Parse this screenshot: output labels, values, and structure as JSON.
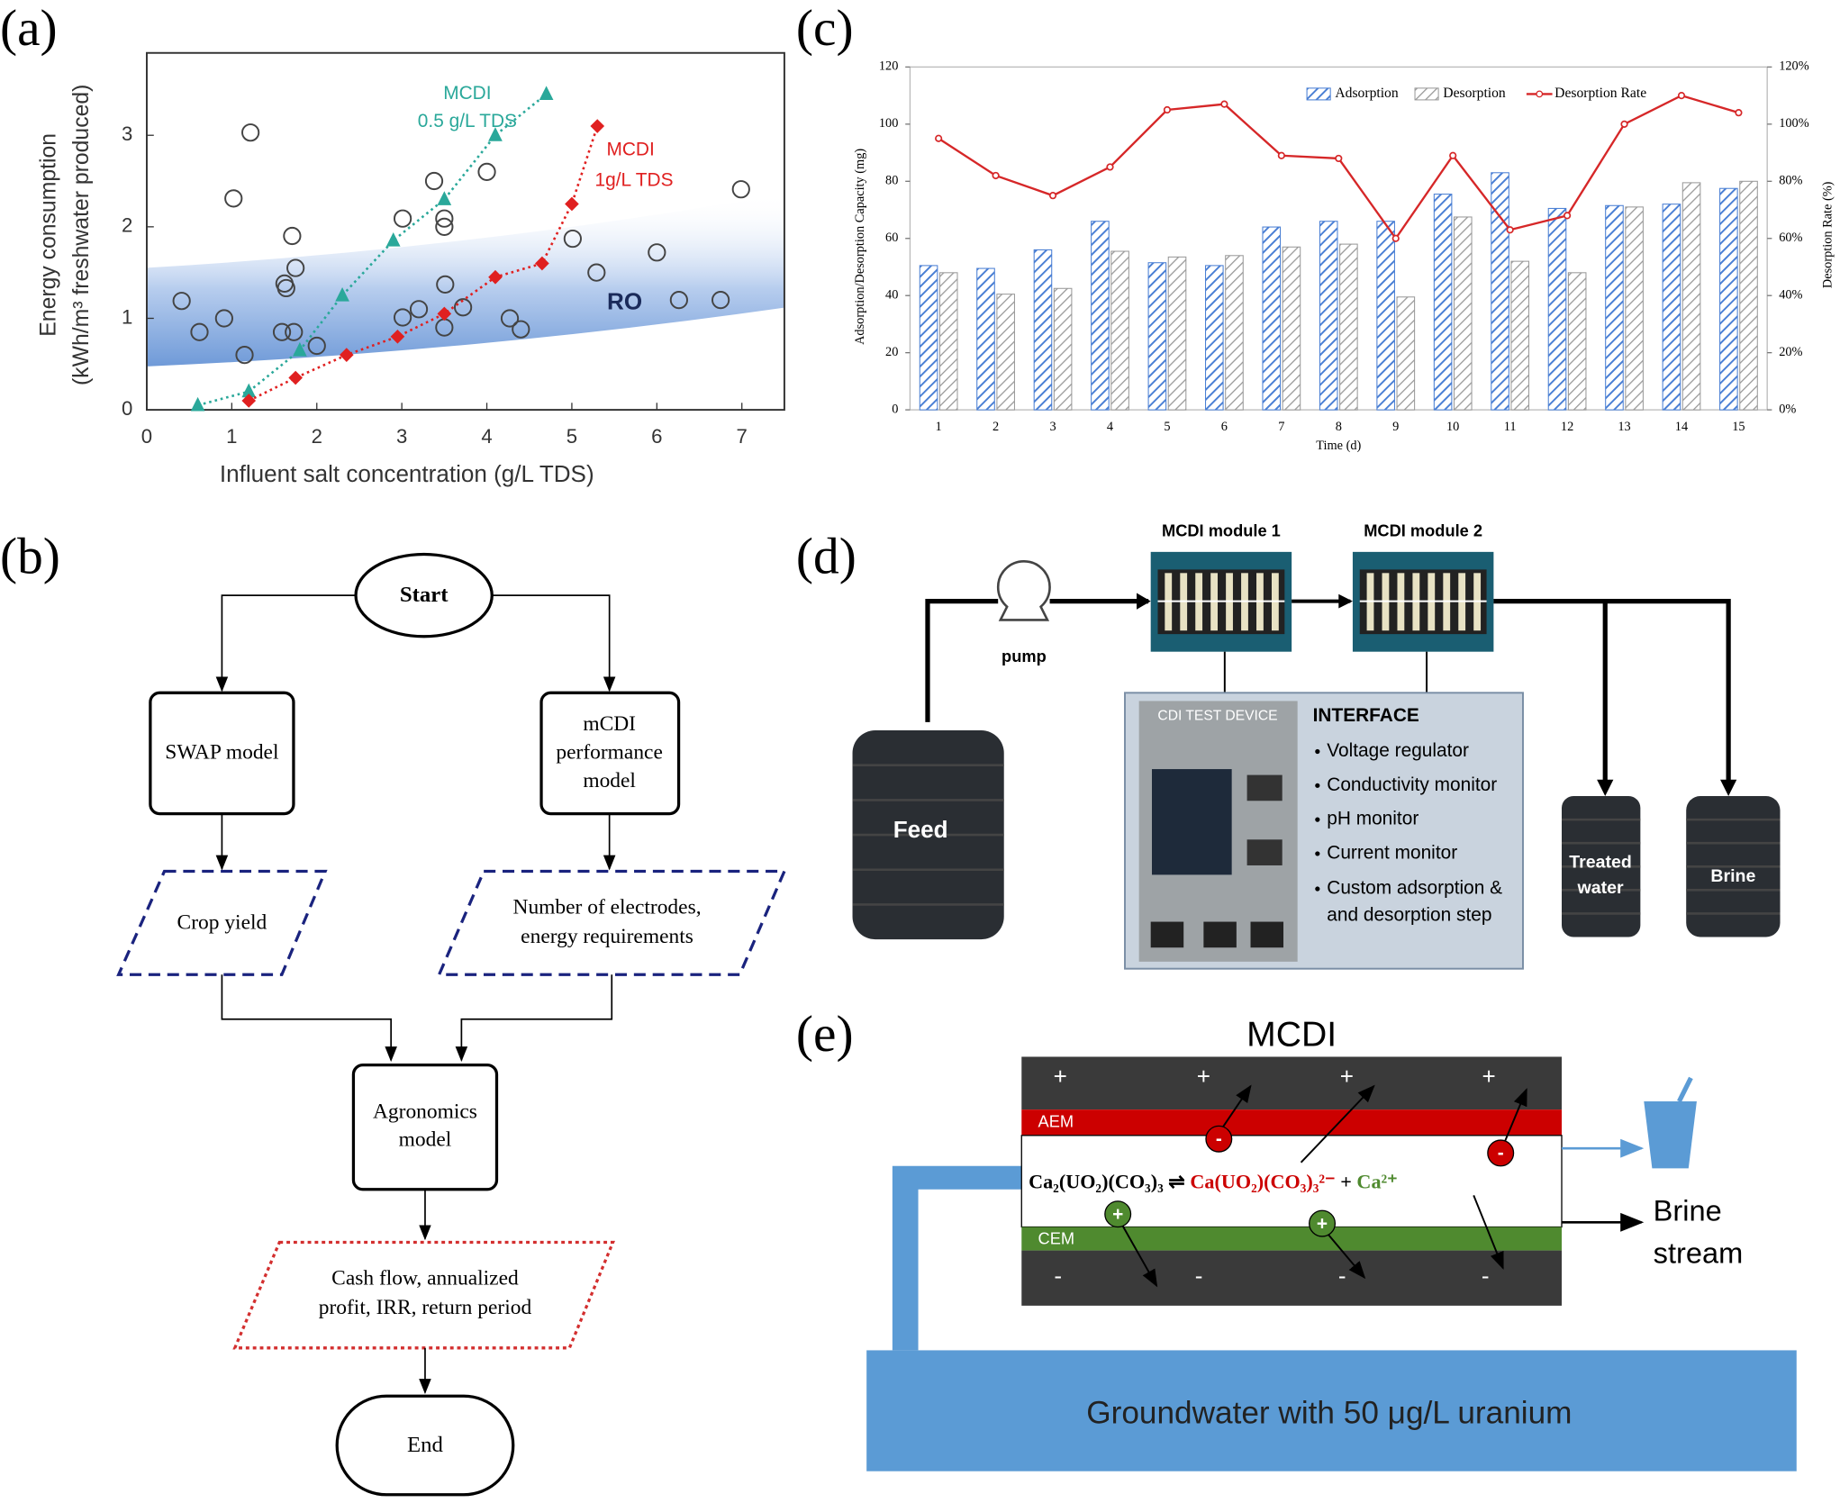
{
  "panel_labels": [
    "(a)",
    "(b)",
    "(c)",
    "(d)",
    "(e)"
  ],
  "chart_data": [
    {
      "type": "scatter",
      "y_label": [
        "Energy consumption",
        "(kWh/m³ freshwater produced)"
      ],
      "x_label": "Influent salt concentration (g/L TDS)",
      "xlim": [
        0,
        7.5
      ],
      "xticks": [
        0,
        1,
        2,
        3,
        4,
        5,
        6,
        7
      ],
      "ylim": [
        0,
        3.9
      ],
      "yticks": [
        0,
        1,
        2,
        3
      ],
      "annotations": [
        {
          "text": "MCDI",
          "color": "#2aa89a"
        },
        {
          "text": "0.5 g/L TDS",
          "color": "#2aa89a"
        },
        {
          "text": "MCDI",
          "color": "#e02020"
        },
        {
          "text": "1g/L TDS",
          "color": "#e02020"
        },
        {
          "text": "RO",
          "color": "#1a2a5a"
        }
      ],
      "series": [
        {
          "marker": "circle",
          "color": "#444444",
          "x": [
            0.41,
            0.62,
            0.91,
            1.02,
            1.15,
            1.22,
            1.59,
            1.62,
            1.64,
            1.71,
            1.75,
            1.73,
            2.0,
            3.01,
            3.01,
            3.2,
            3.38,
            3.5,
            3.5,
            3.51,
            3.5,
            3.72,
            4.0,
            4.27,
            4.4,
            5.01,
            5.29,
            6.0,
            6.26,
            6.75,
            6.99
          ],
          "values": [
            1.19,
            0.85,
            1.0,
            2.31,
            0.6,
            3.03,
            0.85,
            1.38,
            1.33,
            1.9,
            1.55,
            0.85,
            0.7,
            2.09,
            1.01,
            1.1,
            2.5,
            2.09,
            2.0,
            1.37,
            0.9,
            1.12,
            2.6,
            1.0,
            0.88,
            1.87,
            1.5,
            1.72,
            1.2,
            1.2,
            2.41
          ]
        },
        {
          "marker": "triangle",
          "color": "#2aa89a",
          "x": [
            0.6,
            1.2,
            1.8,
            2.3,
            2.9,
            3.5,
            4.1,
            4.7
          ],
          "values": [
            0.05,
            0.2,
            0.65,
            1.25,
            1.85,
            2.3,
            3.0,
            3.45
          ]
        },
        {
          "marker": "diamond",
          "color": "#e02020",
          "x": [
            1.2,
            1.75,
            2.35,
            2.95,
            3.5,
            4.1,
            4.65,
            5.0,
            5.3
          ],
          "values": [
            0.1,
            0.35,
            0.6,
            0.8,
            1.05,
            1.45,
            1.6,
            2.25,
            3.1
          ]
        }
      ]
    },
    {
      "type": "bar",
      "categories": [
        "1",
        "2",
        "3",
        "4",
        "5",
        "6",
        "7",
        "8",
        "9",
        "10",
        "11",
        "12",
        "13",
        "14",
        "15"
      ],
      "y_label": "Adsorption/Desorption Capacity (mg)",
      "y2_label": "Desorption Rate (%)",
      "x_label": "Time (d)",
      "ylim": [
        0,
        120
      ],
      "yticks": [
        0,
        20,
        40,
        60,
        80,
        100,
        120
      ],
      "y2lim": [
        0,
        120
      ],
      "y2ticks": [
        {
          "value": 0,
          "label": "0%"
        },
        {
          "value": 20,
          "label": "20%"
        },
        {
          "value": 40,
          "label": "40%"
        },
        {
          "value": 60,
          "label": "60%"
        },
        {
          "value": 80,
          "label": "80%"
        },
        {
          "value": 100,
          "label": "100%"
        },
        {
          "value": 120,
          "label": "120%"
        }
      ],
      "legend": "top",
      "series": [
        {
          "name": "Adsorption",
          "color": "#4a7fd4",
          "values": [
            50.5,
            49.5,
            56,
            66,
            51.5,
            50.5,
            64,
            66,
            66,
            75.5,
            83,
            70.5,
            71.5,
            72,
            77.5
          ]
        },
        {
          "name": "Desorption",
          "color": "#9a9a9a",
          "values": [
            48,
            40.5,
            42.5,
            55.5,
            53.5,
            54,
            57,
            58,
            39.5,
            67.5,
            52,
            48,
            71,
            79.5,
            80
          ]
        },
        {
          "name": "Desorption Rate",
          "color": "#d62728",
          "axis": "y2",
          "values": [
            95,
            82,
            75,
            85,
            105,
            107,
            89,
            88,
            60,
            89,
            63,
            68,
            100,
            110,
            104
          ]
        }
      ]
    }
  ],
  "flowchart": {
    "start": "Start",
    "swap": [
      "SWAP model"
    ],
    "mcdi": [
      "mCDI",
      "performance",
      "model"
    ],
    "crop": [
      "Crop yield"
    ],
    "electrodes": [
      "Number of electrodes,",
      "energy requirements"
    ],
    "agronomics": [
      "Agronomics",
      "model"
    ],
    "cash": [
      "Cash flow, annualized",
      "profit, IRR, return period"
    ],
    "end": "End"
  },
  "setup": {
    "module1": "MCDI module 1",
    "module2": "MCDI module 2",
    "pump": "pump",
    "feed": "Feed",
    "treated": [
      "Treated",
      "water"
    ],
    "brine": "Brine",
    "device": "CDI TEST DEVICE",
    "interface": "INTERFACE",
    "items": [
      "Voltage regulator",
      "Conductivity monitor",
      "pH monitor",
      "Current monitor",
      "Custom adsorption &",
      "and desorption step"
    ]
  },
  "mcdi": {
    "title": "MCDI",
    "anode_signs": [
      "+",
      "+",
      "+",
      "+"
    ],
    "cathode_signs": [
      "-",
      "-",
      "-",
      "-"
    ],
    "aem": "AEM",
    "cem": "CEM",
    "anion_sign": "-",
    "cation_sign": "+",
    "equation": {
      "left": "Ca₂(UO₂)(CO₃)₃ ⇌",
      "anion": "Ca(UO₂)(CO₃)₃²⁻",
      "plus": "+",
      "cation": "Ca²⁺"
    },
    "brine": [
      "Brine",
      "stream"
    ],
    "groundwater": "Groundwater with 50 μg/L uranium"
  }
}
